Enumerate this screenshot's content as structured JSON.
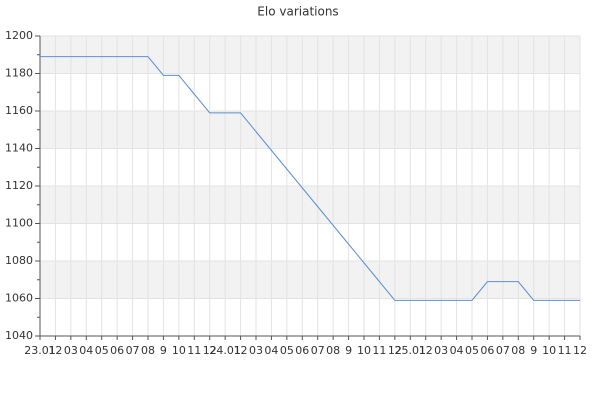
{
  "chart_data": {
    "type": "line",
    "title": "Elo variations",
    "categories": [
      "23.01",
      "12",
      "03",
      "04",
      "05",
      "06",
      "07",
      "08",
      "9",
      "10",
      "11",
      "12",
      "24.01",
      "12",
      "03",
      "04",
      "05",
      "06",
      "07",
      "08",
      "9",
      "10",
      "11",
      "12",
      "25.01",
      "12",
      "03",
      "04",
      "05",
      "06",
      "07",
      "08",
      "9",
      "10",
      "11",
      "12"
    ],
    "series": [
      {
        "name": "Elo",
        "color": "#5b8fd6",
        "values": [
          1189,
          1189,
          1189,
          1189,
          1189,
          1189,
          1189,
          1189,
          1179,
          1179,
          1169,
          1159,
          1159,
          1159,
          1149,
          1139,
          1129,
          1119,
          1109,
          1099,
          1089,
          1079,
          1069,
          1059,
          1059,
          1059,
          1059,
          1059,
          1059,
          1069,
          1069,
          1069,
          1059,
          1059,
          1059,
          1059
        ]
      }
    ],
    "ylim": [
      1040,
      1200
    ],
    "yticks": [
      1040,
      1060,
      1080,
      1100,
      1120,
      1140,
      1160,
      1180,
      1200
    ],
    "grid": true
  }
}
